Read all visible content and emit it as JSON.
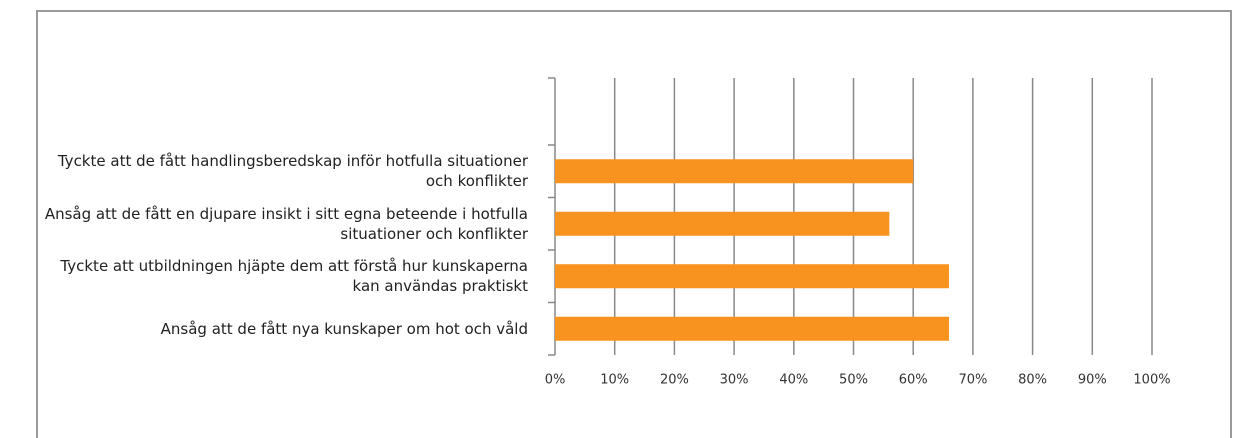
{
  "chart_data": {
    "type": "barh",
    "categories": [
      "Tyckte att de fått handlingsberedskap inför hotfulla situationer och konflikter",
      "Ansåg att de fått en djupare insikt i sitt egna beteende i hotfulla situationer och konflikter",
      "Tyckte att utbildningen hjäpte dem att förstå hur kunskaperna kan användas praktiskt",
      "Ansåg att de fått nya kunskaper om hot och våld"
    ],
    "values": [
      60,
      56,
      66,
      66
    ],
    "color": "#f7931e",
    "xlim": [
      0,
      100
    ],
    "xticks": [
      {
        "value": 0,
        "label": "0%"
      },
      {
        "value": 10,
        "label": "10%"
      },
      {
        "value": 20,
        "label": "20%"
      },
      {
        "value": 30,
        "label": "30%"
      },
      {
        "value": 40,
        "label": "40%"
      },
      {
        "value": 50,
        "label": "50%"
      },
      {
        "value": 60,
        "label": "60%"
      },
      {
        "value": 70,
        "label": "70%"
      },
      {
        "value": 80,
        "label": "80%"
      },
      {
        "value": 90,
        "label": "90%"
      },
      {
        "value": 100,
        "label": "100%"
      }
    ],
    "grid": true
  }
}
